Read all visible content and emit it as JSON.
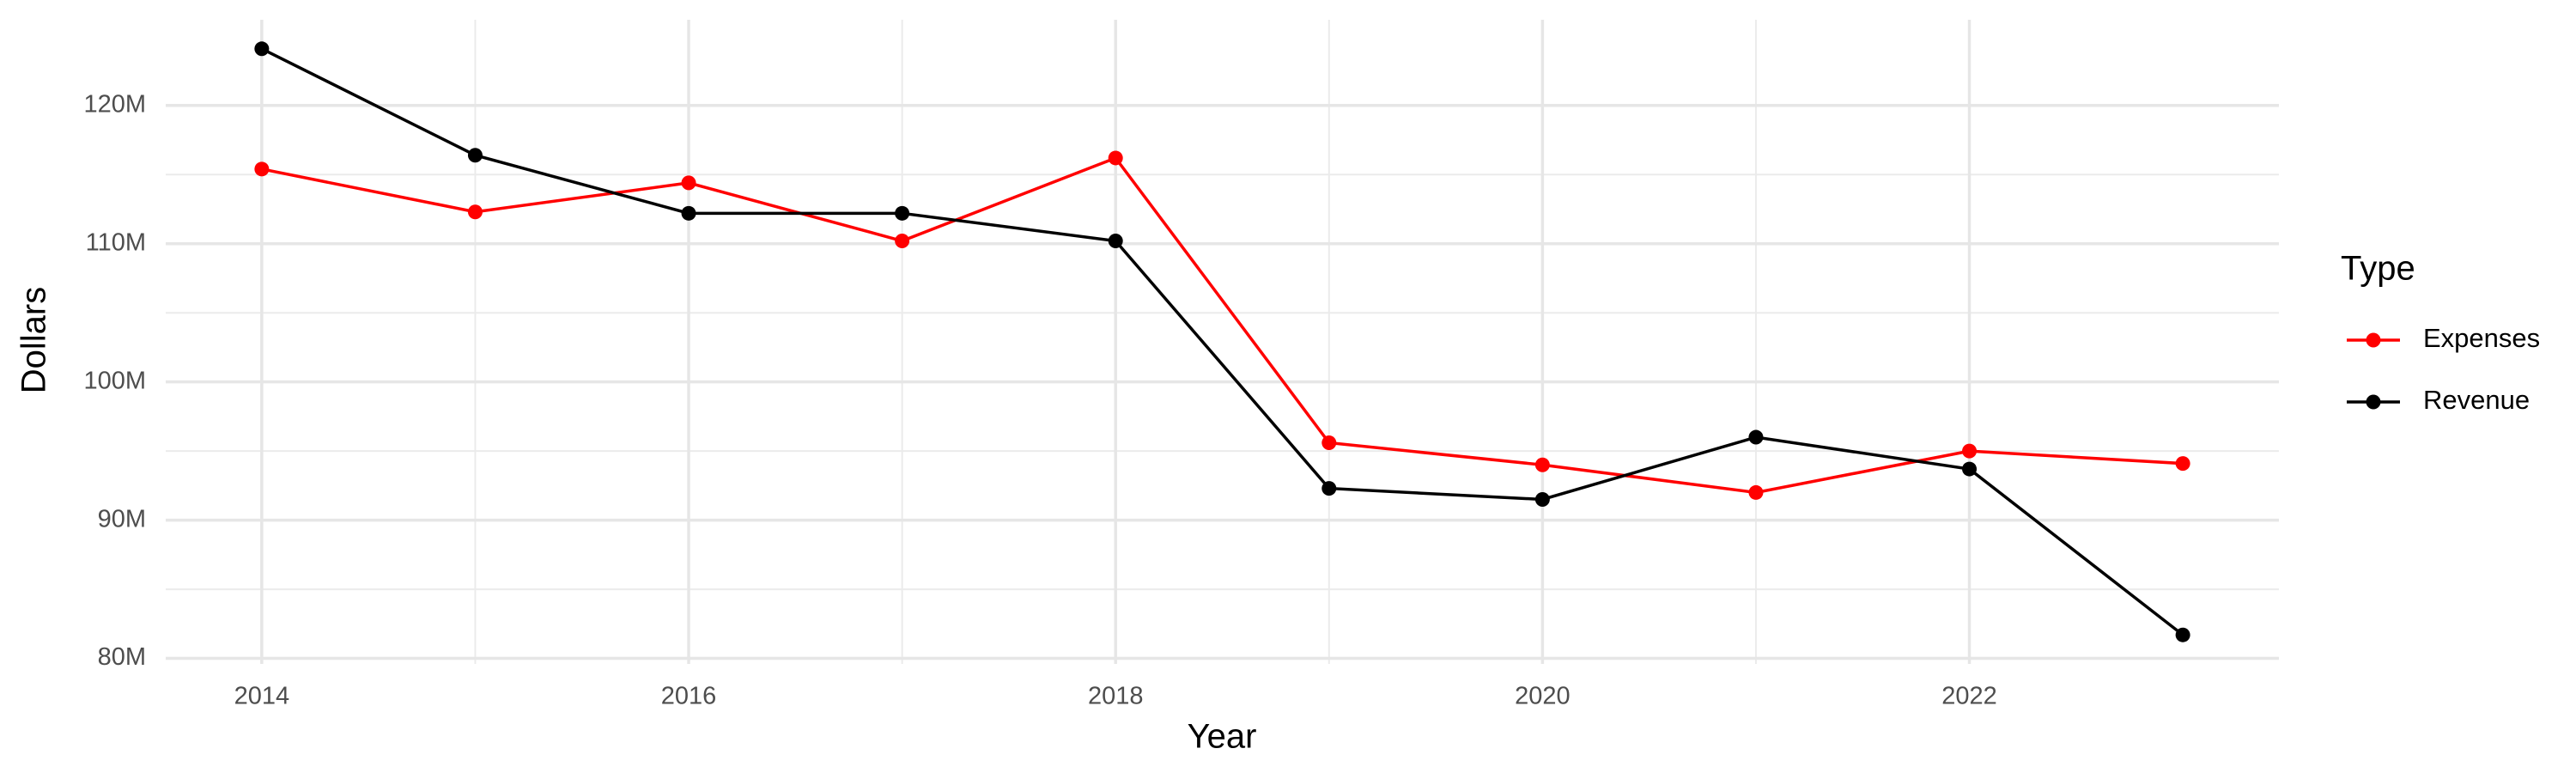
{
  "chart_data": {
    "type": "line",
    "x_label": "Year",
    "y_label": "Dollars",
    "x": [
      2014,
      2015,
      2016,
      2017,
      2018,
      2019,
      2020,
      2021,
      2022,
      2023
    ],
    "series": [
      {
        "name": "Expenses",
        "color": "#ff0000",
        "values": [
          115400000,
          112300000,
          114400000,
          110200000,
          116200000,
          95600000,
          94000000,
          92000000,
          95000000,
          94100000
        ]
      },
      {
        "name": "Revenue",
        "color": "#000000",
        "values": [
          124100000,
          116400000,
          112200000,
          112200000,
          110200000,
          92300000,
          91500000,
          96000000,
          93700000,
          81700000
        ]
      }
    ],
    "xlim": [
      2013.55,
      2023.45
    ],
    "xticks": [
      2014,
      2016,
      2018,
      2020,
      2022
    ],
    "ylim": [
      79600000,
      126200000
    ],
    "yticks": [
      {
        "value": 80000000,
        "label": "80M"
      },
      {
        "value": 90000000,
        "label": "90M"
      },
      {
        "value": 100000000,
        "label": "100M"
      },
      {
        "value": 110000000,
        "label": "110M"
      },
      {
        "value": 120000000,
        "label": "120M"
      }
    ],
    "grid": true,
    "minor_grid": true,
    "legend_title": "Type",
    "legend_position": "right"
  }
}
